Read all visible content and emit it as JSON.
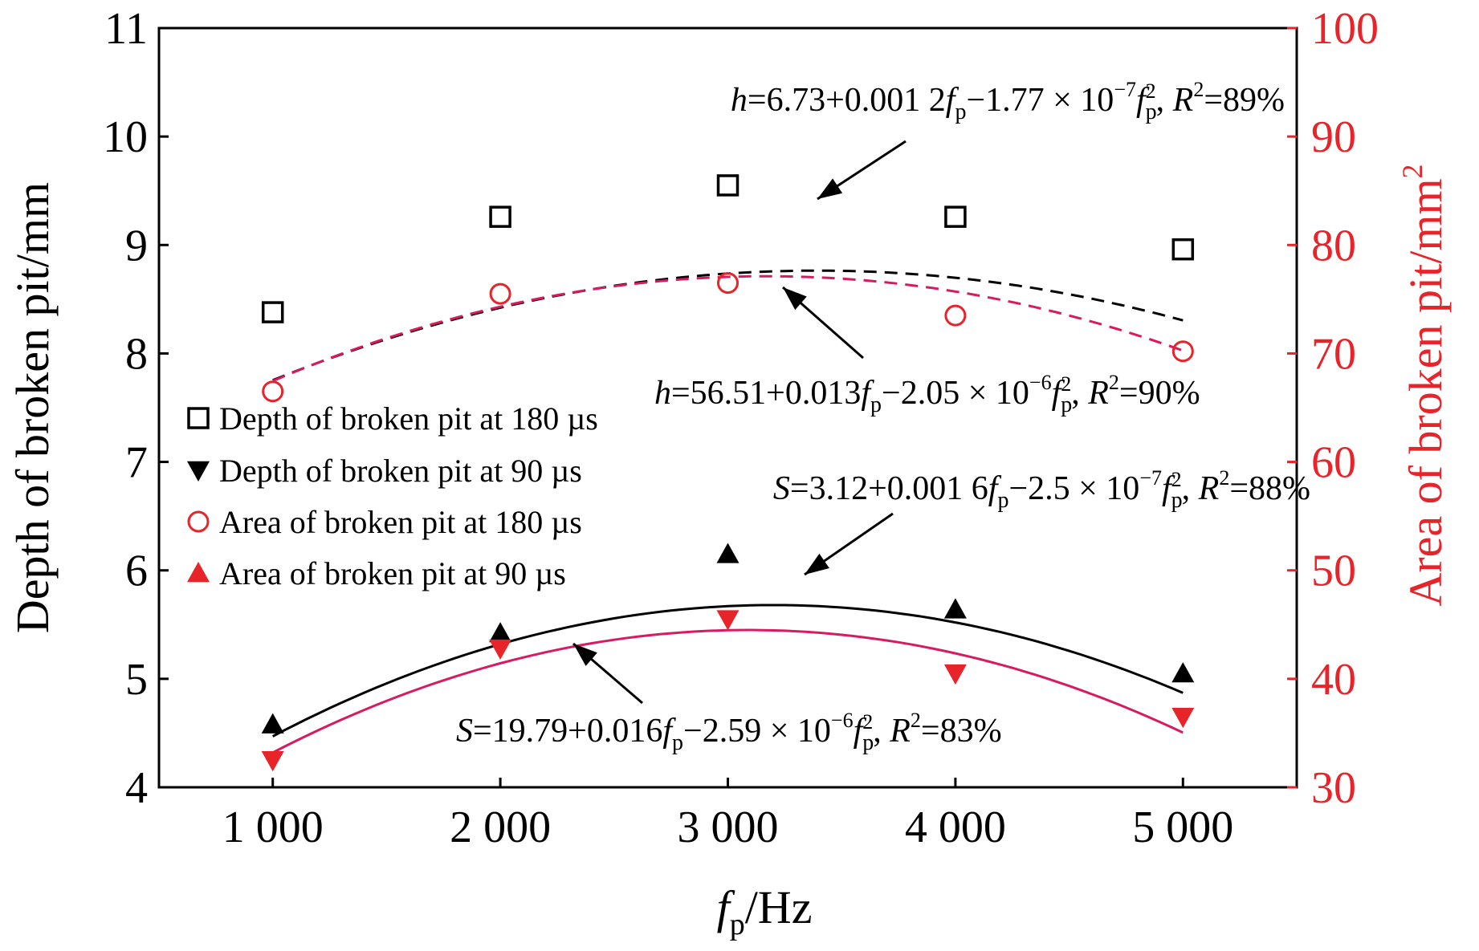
{
  "chart_data": {
    "type": "scatter",
    "x": [
      1000,
      2000,
      3000,
      4000,
      5000
    ],
    "x_tick_labels": [
      "1 000",
      "2 000",
      "3 000",
      "4 000",
      "5 000"
    ],
    "xlim": [
      500,
      5500
    ],
    "xlabel": {
      "main": "f",
      "sub": "p",
      "tail": "/Hz"
    },
    "ylabel_left": "Depth of broken pit/mm",
    "ylabel_right": {
      "main": "Area of broken pit/mm",
      "sup": "2"
    },
    "ylim_left": [
      4,
      11
    ],
    "ylim_right": [
      30,
      100
    ],
    "y_ticks_left": [
      "4",
      "5",
      "6",
      "7",
      "8",
      "9",
      "10",
      "11"
    ],
    "y_ticks_right": [
      "30",
      "40",
      "50",
      "60",
      "70",
      "80",
      "90",
      "100"
    ],
    "colors": {
      "black": "#000000",
      "red": "#e8242b",
      "red_fit": "#d81b60",
      "right_axis": "#e8242b"
    },
    "legend_position": "left-middle",
    "series": [
      {
        "name": "Depth of broken pit at 180 µs",
        "axis": "left",
        "marker": "square-open",
        "color": "#000000",
        "values": [
          8.38,
          9.26,
          9.55,
          9.26,
          8.96
        ],
        "fit": {
          "a": 6.73,
          "b": 0.0012,
          "c": -1.77e-07,
          "style": "dashed",
          "color": "#000000"
        }
      },
      {
        "name": "Depth of broken pit at 90 µs",
        "axis": "left",
        "marker": "triangle-filled",
        "color": "#000000",
        "values": [
          4.58,
          5.42,
          6.15,
          5.64,
          5.05
        ],
        "fit": {
          "a": 3.12,
          "b": 0.0016,
          "c": -2.5e-07,
          "style": "solid",
          "color": "#000000"
        }
      },
      {
        "name": "Area of broken pit at 180 µs",
        "axis": "right",
        "marker": "circle-open",
        "color": "#e8242b",
        "values": [
          66.5,
          75.5,
          76.5,
          73.5,
          70.2
        ],
        "fit": {
          "a": 56.51,
          "b": 0.013,
          "c": -2.05e-06,
          "style": "dashed",
          "color": "#d81b60"
        }
      },
      {
        "name": "Area of broken pit at 90 µs",
        "axis": "right",
        "marker": "triangle-down-filled",
        "color": "#e8242b",
        "values": [
          32.5,
          42.8,
          45.5,
          40.5,
          36.5
        ],
        "fit": {
          "a": 19.79,
          "b": 0.016,
          "c": -2.59e-06,
          "style": "solid",
          "color": "#d81b60"
        }
      }
    ],
    "annotations": [
      {
        "var": "h",
        "eq": "=6.73+0.001 2",
        "t1": "−1.77 × 10",
        "exp": "−7",
        "r2": "=89%"
      },
      {
        "var": "h",
        "eq": "=56.51+0.013",
        "t1": "−2.05 × 10",
        "exp": "−6",
        "r2": "=90%"
      },
      {
        "var": "S",
        "eq": "=3.12+0.001 6",
        "t1": "−2.5 × 10",
        "exp": "−7",
        "r2": "=88%"
      },
      {
        "var": "S",
        "eq": "=19.79+0.016",
        "t1": "−2.59 × 10",
        "exp": "−6",
        "r2": "=83%"
      }
    ],
    "annotation_symbols": {
      "f": "f",
      "p": "p",
      "sq": "2",
      "r": "R",
      "comma": ", "
    }
  }
}
